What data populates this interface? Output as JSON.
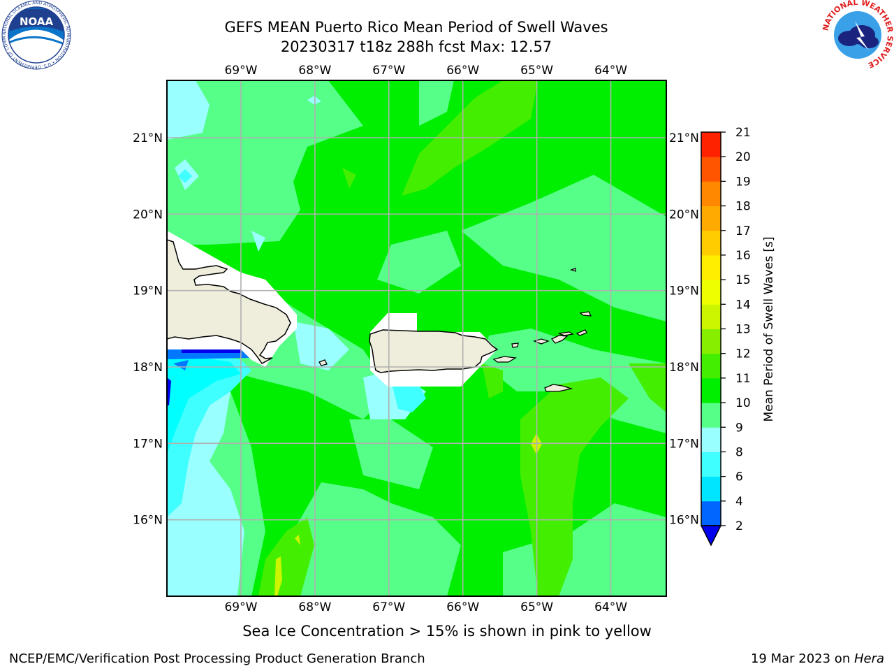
{
  "title": {
    "line1": "GEFS MEAN Puerto Rico Mean Period of Swell Waves",
    "line2": "20230317 t18z 288h fcst   Max: 12.57"
  },
  "map": {
    "lon_labels": [
      "69°W",
      "68°W",
      "67°W",
      "66°W",
      "65°W",
      "64°W"
    ],
    "lat_labels": [
      "21°N",
      "20°N",
      "19°N",
      "18°N",
      "17°N",
      "16°N"
    ],
    "lon_range": [
      -70.0,
      -63.25
    ],
    "lat_range": [
      15.0,
      21.75
    ],
    "land_color": "#efeedc",
    "ocean_base_color": "#00ee00"
  },
  "colorbar": {
    "label": "Mean Period of Swell Waves [s]",
    "ticks": [
      "2",
      "4",
      "6",
      "8",
      "9",
      "10",
      "11",
      "12",
      "13",
      "14",
      "15",
      "16",
      "17",
      "18",
      "19",
      "20",
      "21"
    ],
    "colors": [
      "#0066ff",
      "#00e5ff",
      "#40ffff",
      "#99ffff",
      "#55ff88",
      "#00ee00",
      "#44ee00",
      "#88ee00",
      "#ccf500",
      "#eeff00",
      "#ffee00",
      "#ffcc00",
      "#ffaa00",
      "#ff8800",
      "#ff5500",
      "#ff2200"
    ],
    "under_color": "#0000ee"
  },
  "footer": {
    "sea_ice_note": "Sea Ice Concentration > 15% is shown in pink to yellow",
    "credit_left": "NCEP/EMC/Verification Post Processing Product Generation Branch",
    "credit_date": "19 Mar 2023 on ",
    "credit_host": "Hera"
  },
  "logos": {
    "noaa_text": "NOAA",
    "noaa_ring_text": "NATIONAL OCEANIC AND ATMOSPHERIC ADMINISTRATION • U.S. DEPARTMENT OF COMMERCE",
    "nws_ring_text": "NATIONAL WEATHER SERVICE"
  }
}
